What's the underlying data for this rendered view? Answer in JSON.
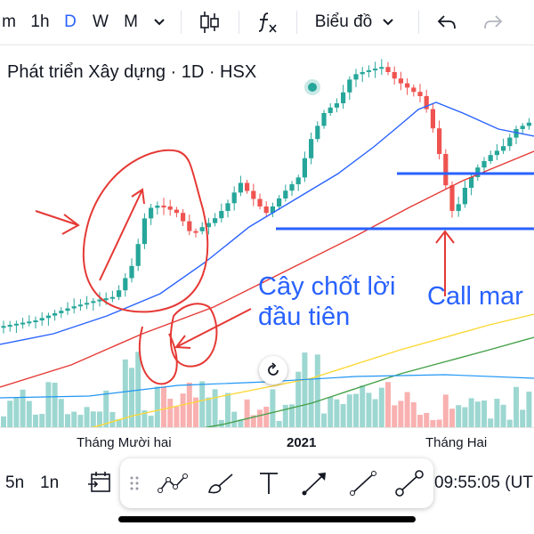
{
  "toolbar": {
    "intervals": [
      "m",
      "1h",
      "D",
      "W",
      "M"
    ],
    "active_interval": "D",
    "chart_type_label": "Biểu đồ"
  },
  "chart": {
    "title": "Phát triển Xây dựng · 1D · HSX",
    "x_labels": [
      "Tháng Mười hai",
      "2021",
      "Tháng Hai"
    ],
    "annotations": {
      "note1_line1": "Cây chốt lời",
      "note1_line2": "đầu tiên",
      "note2": "Call mar"
    }
  },
  "bottom": {
    "range_1": "5n",
    "range_2": "1n",
    "time": "09:55:05 (UT"
  },
  "colors": {
    "up": "#26a69a",
    "down": "#ef5350",
    "ma_blue": "#2962ff",
    "ma_red": "#e53935",
    "ma_yellow": "#fdd835",
    "ma_green": "#43a047",
    "annotation_red": "#e53935",
    "annotation_blue": "#2962ff"
  },
  "icons": [
    "chevron-down-icon",
    "candles-icon",
    "fx-icon",
    "undo-icon",
    "redo-icon",
    "calendar-range-icon",
    "drag-handle-icon",
    "trend-line-icon",
    "brush-icon",
    "text-icon",
    "arrow-icon",
    "line-icon",
    "shape-icon",
    "reset-icon"
  ]
}
